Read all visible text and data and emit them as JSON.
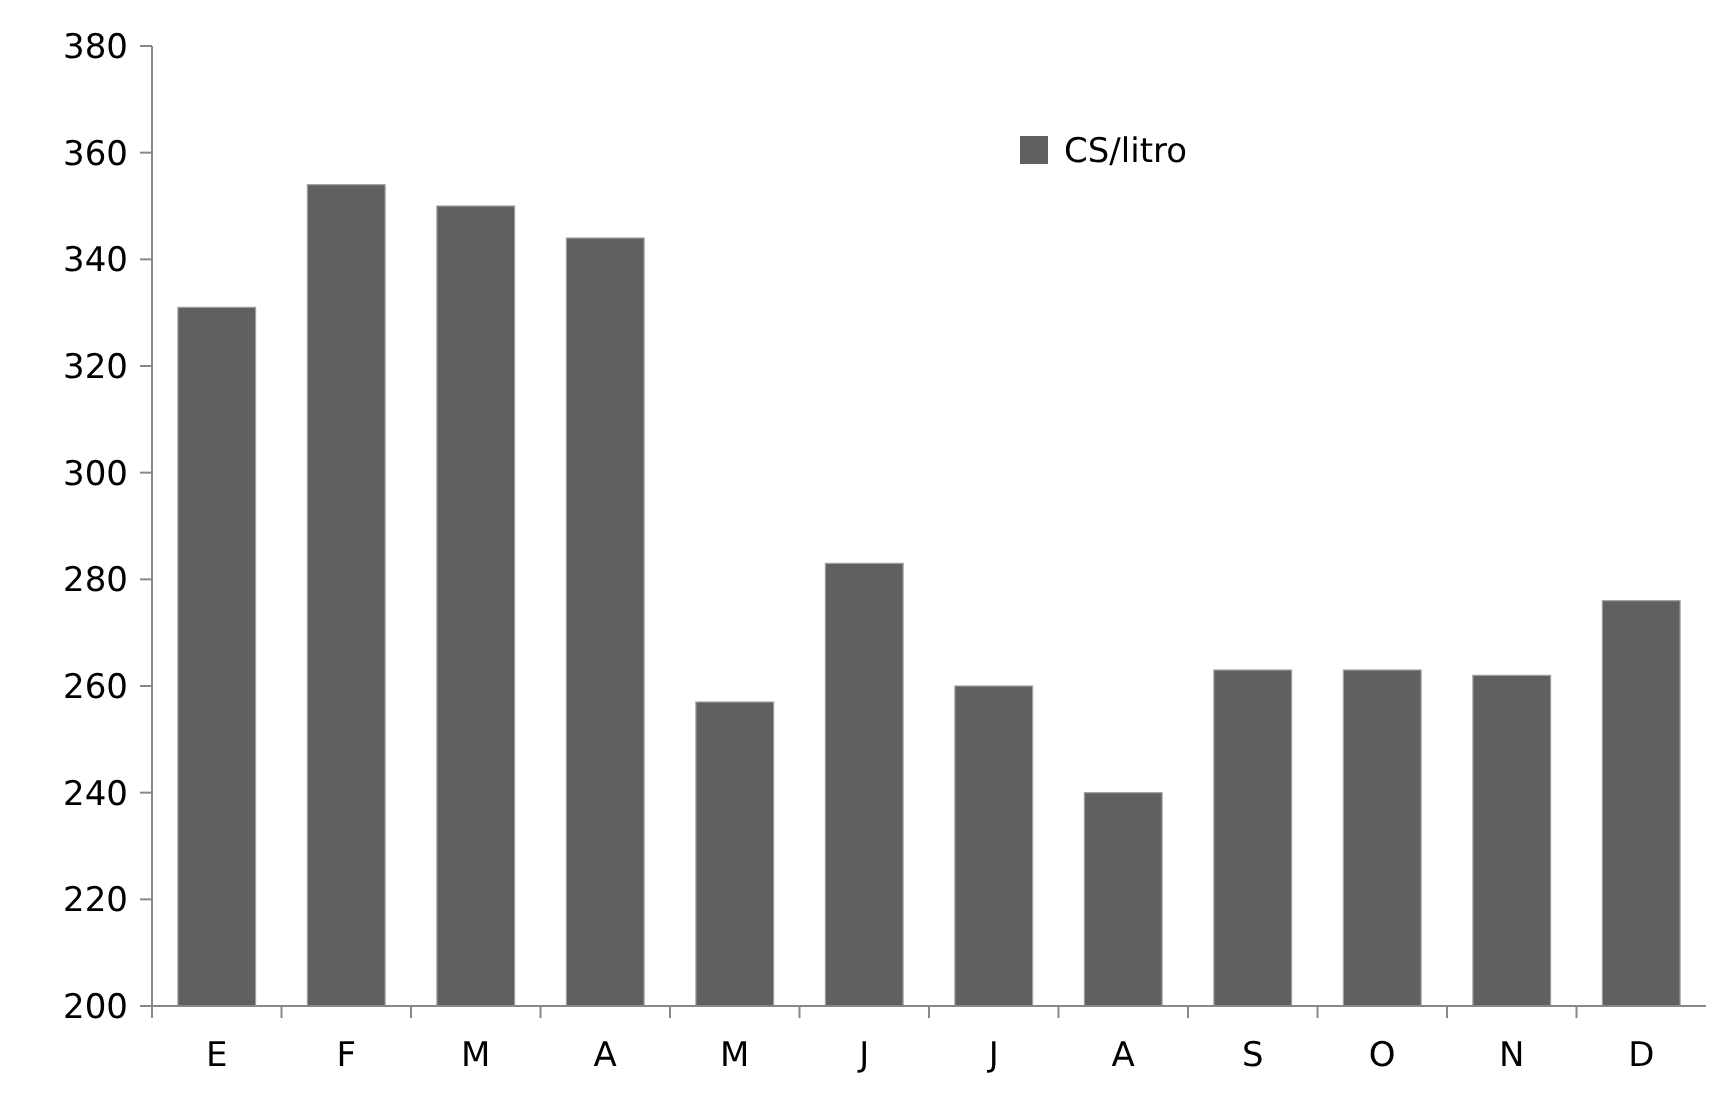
{
  "chart_data": {
    "type": "bar",
    "categories": [
      "E",
      "F",
      "M",
      "A",
      "M",
      "J",
      "J",
      "A",
      "S",
      "O",
      "N",
      "D"
    ],
    "series": [
      {
        "name": "CS/litro",
        "color": "#606060",
        "values": [
          331,
          354,
          350,
          344,
          257,
          283,
          260,
          240,
          263,
          263,
          262,
          276
        ]
      }
    ],
    "ylim": [
      200,
      380
    ],
    "yticks": [
      200,
      220,
      240,
      260,
      280,
      300,
      320,
      340,
      360,
      380
    ],
    "legend": "top right"
  }
}
